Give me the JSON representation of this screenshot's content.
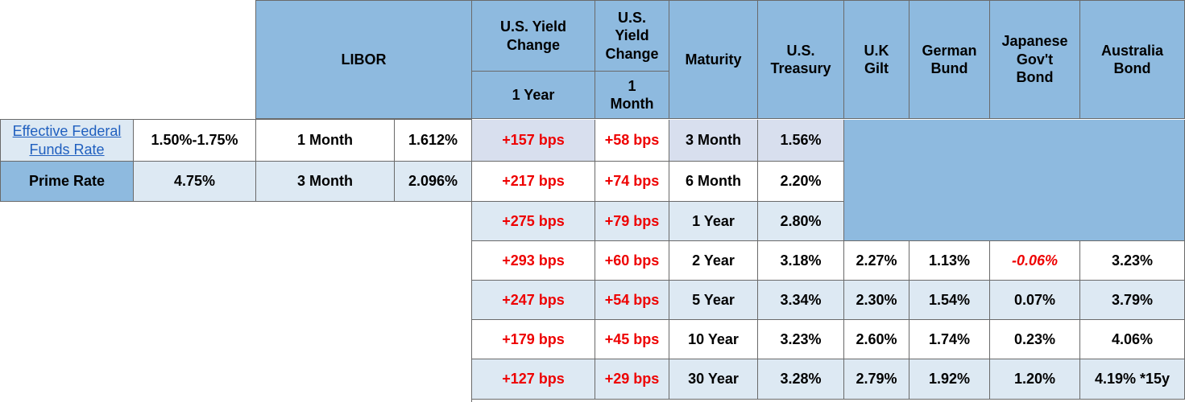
{
  "header": {
    "libor": "LIBOR",
    "us_yield_change_1y_title": "U.S. Yield Change",
    "us_yield_change_1y_sub": "1 Year",
    "us_yield_change_1m_title": "U.S. Yield Change",
    "us_yield_change_1m_sub": "1 Month",
    "maturity": "Maturity",
    "us_treasury": "U.S. Treasury",
    "uk_gilt": "U.K Gilt",
    "german_bund": "German Bund",
    "japanese_bond": "Japanese Gov't Bond",
    "australia_bond": "Australia Bond"
  },
  "left": {
    "effective_fed_label": "Effective Federal Funds Rate",
    "effective_fed_value": "1.50%-1.75%",
    "prime_label": "Prime Rate",
    "prime_value": "4.75%",
    "libor_rows": [
      {
        "term": "1 Month",
        "rate": "1.612%"
      },
      {
        "term": "3 Month",
        "rate": "2.096%"
      }
    ]
  },
  "rows": [
    {
      "chg1y": "+157 bps",
      "chg1m": "+58 bps",
      "maturity": "3 Month",
      "ust": "1.56%"
    },
    {
      "chg1y": "+217 bps",
      "chg1m": "+74 bps",
      "maturity": "6 Month",
      "ust": "2.20%"
    },
    {
      "chg1y": "+275 bps",
      "chg1m": "+79 bps",
      "maturity": "1 Year",
      "ust": "2.80%"
    },
    {
      "chg1y": "+293 bps",
      "chg1m": "+60 bps",
      "maturity": "2 Year",
      "ust": "3.18%",
      "gilt": "2.27%",
      "bund": "1.13%",
      "jgb": "-0.06%",
      "aus": "3.23%"
    },
    {
      "chg1y": "+247 bps",
      "chg1m": "+54 bps",
      "maturity": "5 Year",
      "ust": "3.34%",
      "gilt": "2.30%",
      "bund": "1.54%",
      "jgb": "0.07%",
      "aus": "3.79%"
    },
    {
      "chg1y": "+179 bps",
      "chg1m": "+45 bps",
      "maturity": "10 Year",
      "ust": "3.23%",
      "gilt": "2.60%",
      "bund": "1.74%",
      "jgb": "0.23%",
      "aus": "4.06%"
    },
    {
      "chg1y": "+127 bps",
      "chg1m": "+29 bps",
      "maturity": "30 Year",
      "ust": "3.28%",
      "gilt": "2.79%",
      "bund": "1.92%",
      "jgb": "1.20%",
      "aus": "4.19% *15y"
    }
  ],
  "colors": {
    "header_blue": "#8ebadf",
    "light_blue": "#dde9f3",
    "positive_change_red": "#ee0000",
    "link_blue": "#1f5fbf"
  }
}
